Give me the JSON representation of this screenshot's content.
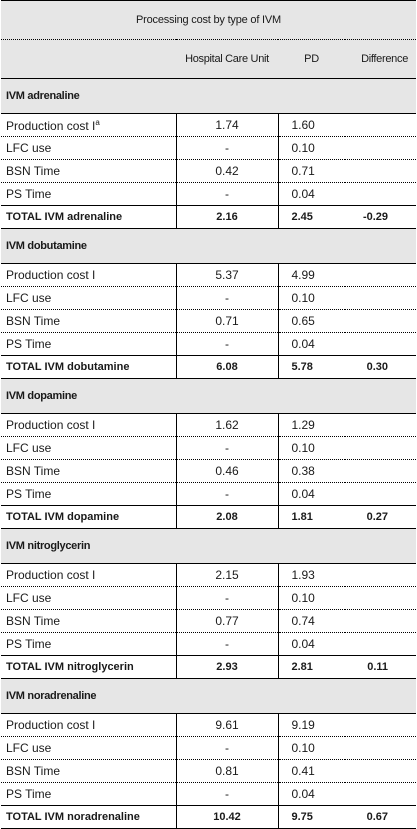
{
  "title": "Processing cost by type of IVM",
  "columns": [
    "",
    "Hospital Care Unit",
    "PD",
    "Difference"
  ],
  "sections": [
    {
      "name": "IVM adrenaline",
      "rows": [
        {
          "label": "Production cost I",
          "sup": "a",
          "hcu": "1.74",
          "pd": "1.60",
          "diff": ""
        },
        {
          "label": "LFC use",
          "sup": "",
          "hcu": "-",
          "pd": "0.10",
          "diff": ""
        },
        {
          "label": "BSN Time",
          "sup": "",
          "hcu": "0.42",
          "pd": "0.71",
          "diff": ""
        },
        {
          "label": "PS Time",
          "sup": "",
          "hcu": "-",
          "pd": "0.04",
          "diff": ""
        }
      ],
      "total": {
        "label": "TOTAL IVM adrenaline",
        "hcu": "2.16",
        "pd": "2.45",
        "diff": "-0.29"
      }
    },
    {
      "name": "IVM dobutamine",
      "rows": [
        {
          "label": "Production cost I",
          "sup": "",
          "hcu": "5.37",
          "pd": "4.99",
          "diff": ""
        },
        {
          "label": "LFC use",
          "sup": "",
          "hcu": "-",
          "pd": "0.10",
          "diff": ""
        },
        {
          "label": "BSN Time",
          "sup": "",
          "hcu": "0.71",
          "pd": "0.65",
          "diff": ""
        },
        {
          "label": "PS Time",
          "sup": "",
          "hcu": "-",
          "pd": "0.04",
          "diff": ""
        }
      ],
      "total": {
        "label": "TOTAL IVM dobutamine",
        "hcu": "6.08",
        "pd": "5.78",
        "diff": "0.30"
      }
    },
    {
      "name": "IVM dopamine",
      "rows": [
        {
          "label": "Production cost I",
          "sup": "",
          "hcu": "1.62",
          "pd": "1.29",
          "diff": ""
        },
        {
          "label": "LFC use",
          "sup": "",
          "hcu": "-",
          "pd": "0.10",
          "diff": ""
        },
        {
          "label": "BSN Time",
          "sup": "",
          "hcu": "0.46",
          "pd": "0.38",
          "diff": ""
        },
        {
          "label": "PS Time",
          "sup": "",
          "hcu": "-",
          "pd": "0.04",
          "diff": ""
        }
      ],
      "total": {
        "label": "TOTAL IVM dopamine",
        "hcu": "2.08",
        "pd": "1.81",
        "diff": "0.27"
      }
    },
    {
      "name": "IVM nitroglycerin",
      "rows": [
        {
          "label": "Production cost I",
          "sup": "",
          "hcu": "2.15",
          "pd": "1.93",
          "diff": ""
        },
        {
          "label": "LFC use",
          "sup": "",
          "hcu": "-",
          "pd": "0.10",
          "diff": ""
        },
        {
          "label": "BSN Time",
          "sup": "",
          "hcu": "0.77",
          "pd": "0.74",
          "diff": ""
        },
        {
          "label": "PS Time",
          "sup": "",
          "hcu": "-",
          "pd": "0.04",
          "diff": ""
        }
      ],
      "total": {
        "label": "TOTAL IVM nitroglycerin",
        "hcu": "2.93",
        "pd": "2.81",
        "diff": "0.11"
      }
    },
    {
      "name": "IVM noradrenaline",
      "rows": [
        {
          "label": "Production cost I",
          "sup": "",
          "hcu": "9.61",
          "pd": "9.19",
          "diff": ""
        },
        {
          "label": "LFC use",
          "sup": "",
          "hcu": "-",
          "pd": "0.10",
          "diff": ""
        },
        {
          "label": "BSN Time",
          "sup": "",
          "hcu": "0.81",
          "pd": "0.41",
          "diff": ""
        },
        {
          "label": "PS Time",
          "sup": "",
          "hcu": "-",
          "pd": "0.04",
          "diff": ""
        }
      ],
      "total": {
        "label": "TOTAL IVM noradrenaline",
        "hcu": "10.42",
        "pd": "9.75",
        "diff": "0.67"
      }
    }
  ]
}
